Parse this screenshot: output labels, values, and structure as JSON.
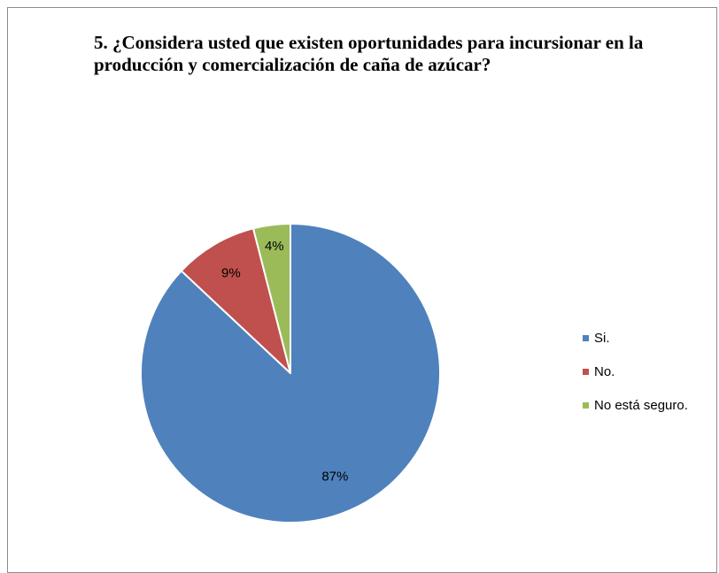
{
  "chart_data": {
    "type": "pie",
    "title": "5. ¿Considera usted que existen oportunidades para incursionar en la producción y comercialización de caña de azúcar?",
    "legend_position": "right",
    "slices": [
      {
        "label": "Si.",
        "value": 87,
        "display": "87%",
        "color": "#4f81bd"
      },
      {
        "label": "No.",
        "value": 9,
        "display": "9%",
        "color": "#c0504d"
      },
      {
        "label": "No está seguro.",
        "value": 4,
        "display": "4%",
        "color": "#9bbb59"
      }
    ]
  }
}
